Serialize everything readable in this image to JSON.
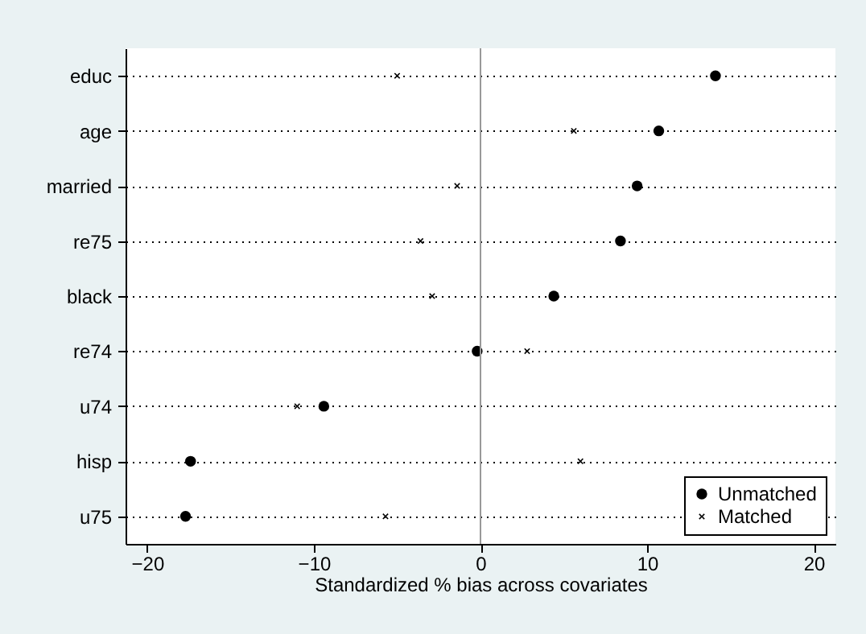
{
  "chart_data": {
    "type": "scatter",
    "xlabel": "Standardized % bias across covariates",
    "categories": [
      "educ",
      "age",
      "married",
      "re75",
      "black",
      "re74",
      "u74",
      "hisp",
      "u75"
    ],
    "orientation": "horizontal",
    "series": [
      {
        "name": "Unmatched",
        "color": "#000000",
        "marker": "circle",
        "values": [
          14.1,
          10.7,
          9.4,
          8.4,
          4.4,
          -0.2,
          -9.4,
          -17.4,
          -17.7
        ]
      },
      {
        "name": "Matched",
        "color": "#000000",
        "marker": "cross",
        "values": [
          -5.0,
          5.6,
          -1.4,
          -3.6,
          -2.9,
          2.8,
          -11.0,
          6.0,
          -5.7
        ]
      }
    ],
    "xlim": [
      -21.3,
      21.3
    ],
    "xticks": [
      -20,
      -10,
      0,
      10,
      20
    ],
    "ref_lines": [
      {
        "axis": "x",
        "value": 0,
        "color": "#999999"
      }
    ],
    "grid": "y",
    "legend": "bottom right"
  }
}
